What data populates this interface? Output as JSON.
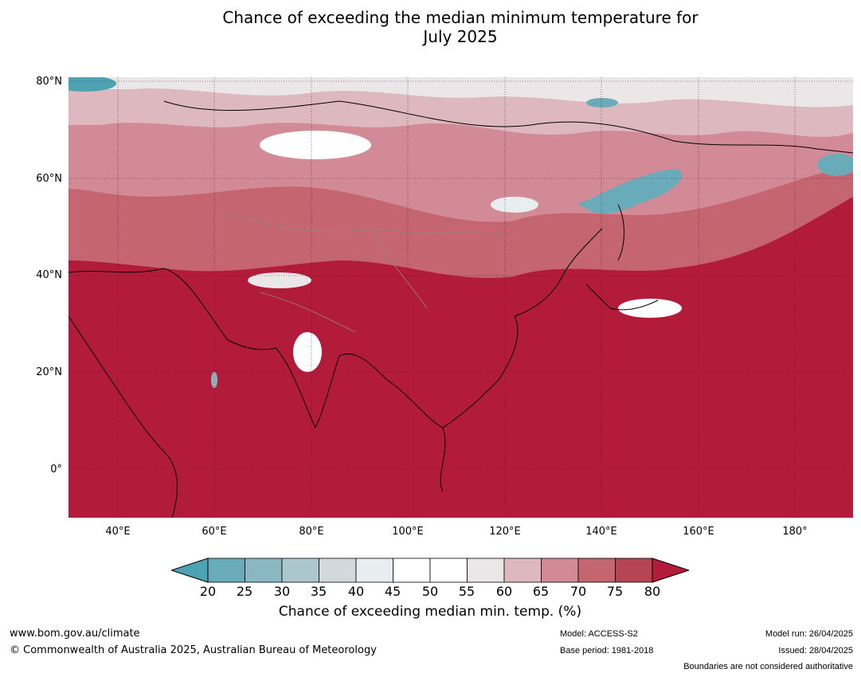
{
  "title_line1": "Chance of exceeding the median minimum temperature for",
  "title_line2": "July 2025",
  "lat_labels": [
    "80°N",
    "60°N",
    "40°N",
    "20°N",
    "0°"
  ],
  "lon_labels": [
    "40°E",
    "60°E",
    "80°E",
    "100°E",
    "120°E",
    "140°E",
    "160°E",
    "180°"
  ],
  "colorbar": {
    "ticks": [
      "20",
      "25",
      "30",
      "35",
      "40",
      "45",
      "50",
      "55",
      "60",
      "65",
      "70",
      "75",
      "80"
    ],
    "colors": [
      "#6aabb9",
      "#8bb7c3",
      "#abc7cd",
      "#d1d9dc",
      "#e8eef0",
      "#ffffff",
      "#ffffff",
      "#ebe6e8",
      "#ddb8bf",
      "#d28a96",
      "#c5656f",
      "#b74452"
    ],
    "low_color": "#4da3b3",
    "high_color": "#b31b3a",
    "label": "Chance of exceeding median min. temp. (%)"
  },
  "footer": {
    "website": "www.bom.gov.au/climate",
    "copyright": "© Commonwealth of Australia 2025, Australian Bureau of Meteorology",
    "model": "Model: ACCESS-S2",
    "base_period": "Base period: 1981-2018",
    "model_run": "Model run: 26/04/2025",
    "issued": "Issued: 28/04/2025",
    "disclaimer": "Boundaries are not considered authoritative"
  }
}
